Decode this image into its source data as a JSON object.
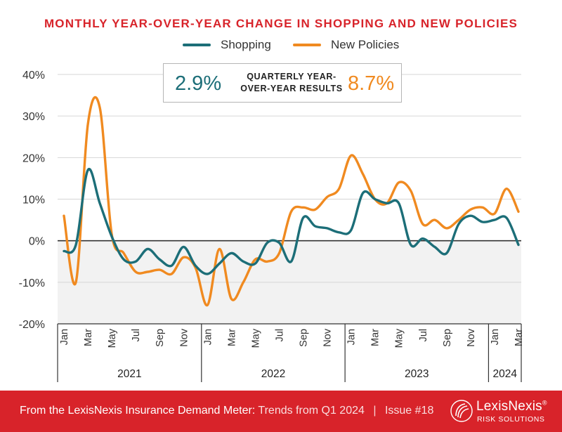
{
  "chart_data": {
    "type": "line",
    "title": "MONTHLY YEAR-OVER-YEAR CHANGE IN SHOPPING AND NEW POLICIES",
    "ylim": [
      -20,
      40
    ],
    "yticks": [
      -20,
      -10,
      0,
      10,
      20,
      30,
      40
    ],
    "ytick_labels": [
      "-20%",
      "-10%",
      "0%",
      "10%",
      "20%",
      "30%",
      "40%"
    ],
    "month_labels": [
      "Jan",
      "Mar",
      "May",
      "Jul",
      "Sep",
      "Nov",
      "Jan",
      "Mar",
      "May",
      "Jul",
      "Sep",
      "Nov",
      "Jan",
      "Mar",
      "May",
      "Jul",
      "Sep",
      "Nov",
      "Jan",
      "Mar"
    ],
    "month_label_index": [
      0,
      2,
      4,
      6,
      8,
      10,
      12,
      14,
      16,
      18,
      20,
      22,
      24,
      26,
      28,
      30,
      32,
      34,
      36,
      38
    ],
    "years": [
      {
        "label": "2021",
        "start": 0,
        "end": 11
      },
      {
        "label": "2022",
        "start": 12,
        "end": 23
      },
      {
        "label": "2023",
        "start": 24,
        "end": 35
      },
      {
        "label": "2024",
        "start": 36,
        "end": 38
      }
    ],
    "series": [
      {
        "name": "Shopping",
        "color": "#1c6e78",
        "values": [
          -2.5,
          -1,
          17,
          9,
          1,
          -4.5,
          -5,
          -2,
          -4.5,
          -6,
          -1.5,
          -6,
          -8,
          -5.5,
          -3,
          -5,
          -5.5,
          -0.5,
          -0.5,
          -5,
          5.5,
          3.5,
          3,
          2,
          2.5,
          11.5,
          10,
          9,
          9,
          -1,
          0.5,
          -1.5,
          -3,
          4,
          6,
          4.5,
          5,
          5.5,
          -1
        ]
      },
      {
        "name": "New Policies",
        "color": "#f08a20",
        "values": [
          6,
          -10,
          28,
          32,
          1.5,
          -3,
          -7.5,
          -7.5,
          -7,
          -8,
          -4,
          -6.5,
          -15.5,
          -2,
          -14,
          -10,
          -4.5,
          -5,
          -3,
          7,
          8,
          7.5,
          10.5,
          12.5,
          20.5,
          16,
          10,
          9,
          14,
          12,
          4,
          5,
          3,
          5,
          7.5,
          8,
          6.5,
          12.5,
          7
        ]
      }
    ]
  },
  "legend": {
    "shopping_label": "Shopping",
    "policies_label": "New Policies"
  },
  "callout": {
    "shopping_value": "2.9%",
    "label": "QUARTERLY YEAR-OVER-YEAR RESULTS",
    "policies_value": "8.7%"
  },
  "footer": {
    "source_bold": "From the LexisNexis Insurance Demand Meter:",
    "source_rest": "Trends from Q1 2024",
    "separator": "|",
    "issue": "Issue #18",
    "logo_name": "LexisNexis",
    "logo_reg": "®",
    "logo_sub": "RISK SOLUTIONS"
  },
  "colors": {
    "brand_red": "#d8232a",
    "shopping": "#1c6e78",
    "policies": "#f08a20"
  }
}
